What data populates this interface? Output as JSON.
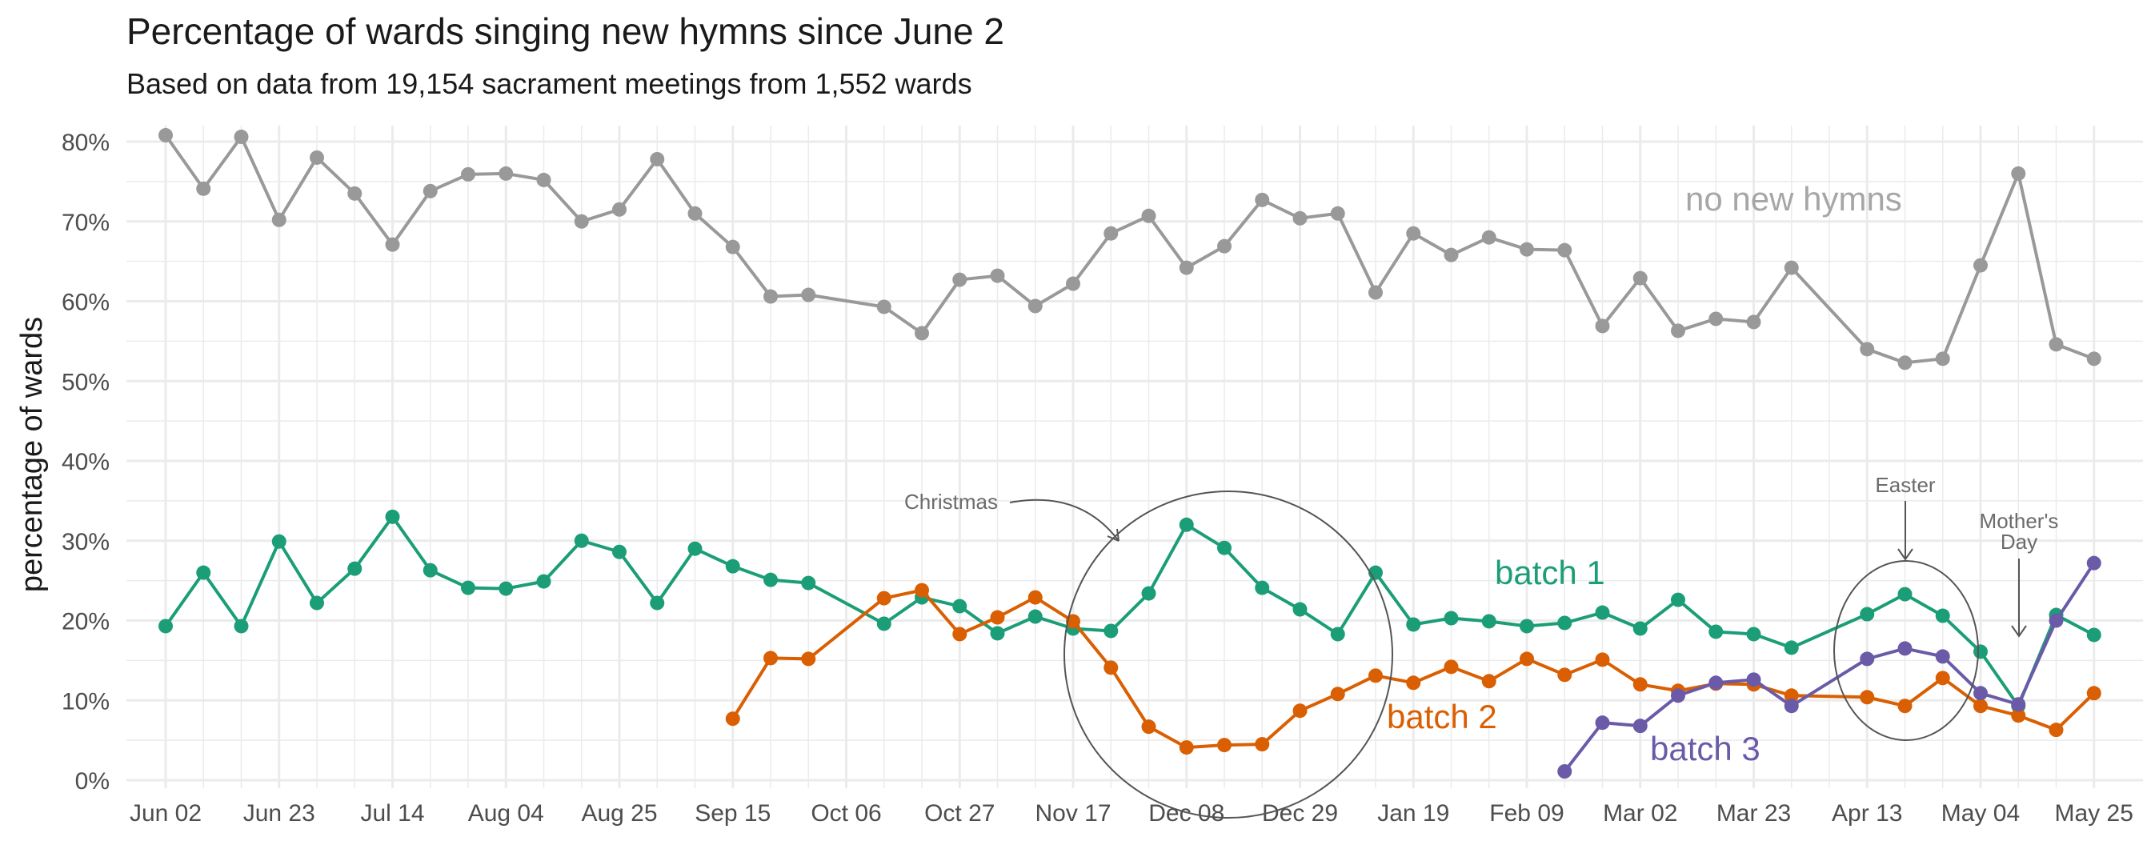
{
  "chart_data": {
    "type": "line",
    "title": "Percentage of wards singing new hymns since June 2",
    "subtitle": "Based on data from 19,154 sacrament meetings from 1,552 wards",
    "ylabel": "percentage of wards",
    "xlabel": "",
    "ylim": [
      0,
      80
    ],
    "y_ticks": [
      "0%",
      "10%",
      "20%",
      "30%",
      "40%",
      "50%",
      "60%",
      "70%",
      "80%"
    ],
    "x_ticks": [
      "Jun 02",
      "Jun 23",
      "Jul 14",
      "Aug 04",
      "Aug 25",
      "Sep 15",
      "Oct 06",
      "Oct 27",
      "Nov 17",
      "Dec 08",
      "Dec 29",
      "Jan 19",
      "Feb 09",
      "Mar 02",
      "Mar 23",
      "Apr 13",
      "May 04",
      "May 25"
    ],
    "grid": true,
    "series": [
      {
        "name": "no new hymns",
        "color": "#999999",
        "values": [
          80.8,
          74.1,
          80.6,
          70.2,
          78.0,
          73.5,
          67.1,
          73.8,
          75.9,
          76.0,
          75.2,
          70.0,
          71.5,
          77.8,
          71.0,
          66.8,
          60.6,
          60.8,
          null,
          59.3,
          56.0,
          62.7,
          63.2,
          59.4,
          62.2,
          68.5,
          70.7,
          64.2,
          66.9,
          72.7,
          70.4,
          71.0,
          61.1,
          68.5,
          65.8,
          68.0,
          66.5,
          66.4,
          56.9,
          62.9,
          56.3,
          57.8,
          57.4,
          64.2,
          null,
          54.0,
          52.3,
          52.8,
          64.5,
          76.0,
          54.6,
          52.8
        ]
      },
      {
        "name": "batch 1",
        "color": "#1b9e77",
        "values": [
          19.3,
          26.0,
          19.3,
          29.9,
          22.2,
          26.5,
          33.0,
          26.3,
          24.1,
          24.0,
          24.9,
          30.0,
          28.6,
          22.2,
          29.0,
          26.8,
          25.1,
          24.7,
          null,
          19.6,
          22.9,
          21.8,
          18.4,
          20.5,
          19.0,
          18.7,
          23.4,
          32.0,
          29.1,
          24.1,
          21.4,
          18.3,
          26.0,
          19.5,
          20.3,
          19.9,
          19.3,
          19.7,
          21.0,
          19.0,
          22.6,
          18.6,
          18.3,
          16.6,
          null,
          20.8,
          23.3,
          20.6,
          16.1,
          9.3,
          20.7,
          18.2
        ]
      },
      {
        "name": "batch 2",
        "color": "#d95f02",
        "values": [
          null,
          null,
          null,
          null,
          null,
          null,
          null,
          null,
          null,
          null,
          null,
          null,
          null,
          null,
          null,
          7.7,
          15.3,
          15.2,
          null,
          22.8,
          23.8,
          18.3,
          20.4,
          22.9,
          19.9,
          14.1,
          6.7,
          4.1,
          4.4,
          4.5,
          8.7,
          10.8,
          13.1,
          12.2,
          14.2,
          12.4,
          15.2,
          13.2,
          15.1,
          12.0,
          11.2,
          12.1,
          12.0,
          10.6,
          null,
          10.4,
          9.3,
          12.8,
          9.3,
          8.1,
          6.3,
          10.9
        ]
      },
      {
        "name": "batch 3",
        "color": "#6a5aa8",
        "values": [
          null,
          null,
          null,
          null,
          null,
          null,
          null,
          null,
          null,
          null,
          null,
          null,
          null,
          null,
          null,
          null,
          null,
          null,
          null,
          null,
          null,
          null,
          null,
          null,
          null,
          null,
          null,
          null,
          null,
          null,
          null,
          null,
          null,
          null,
          null,
          null,
          null,
          1.1,
          7.2,
          6.8,
          10.6,
          12.2,
          12.6,
          9.3,
          null,
          15.2,
          16.5,
          15.5,
          10.9,
          9.5,
          20.0,
          27.2
        ]
      }
    ],
    "series_labels": [
      {
        "text": "no new hymns",
        "color": "#a6a6a6"
      },
      {
        "text": "batch 1",
        "color": "#1b9e77"
      },
      {
        "text": "batch 2",
        "color": "#d95f02"
      },
      {
        "text": "batch 3",
        "color": "#6a5aa8"
      }
    ],
    "annotations": [
      {
        "text": "Christmas"
      },
      {
        "text": "Easter"
      },
      {
        "text": "Mother's",
        "text2": "Day"
      }
    ]
  }
}
